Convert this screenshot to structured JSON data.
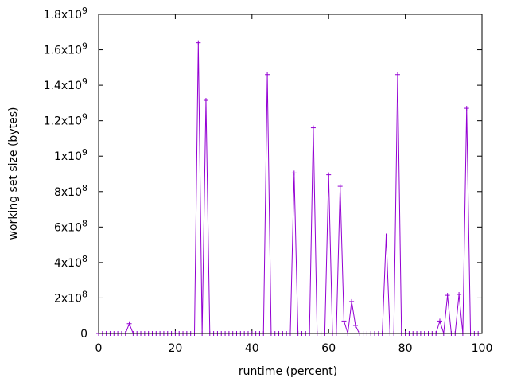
{
  "chart_data": {
    "type": "line",
    "title": "",
    "xlabel": "runtime (percent)",
    "ylabel": "working set size (bytes)",
    "xlim": [
      0,
      100
    ],
    "ylim": [
      0,
      1800000000
    ],
    "grid": false,
    "legend": "none",
    "line_color": "#9400d3",
    "x_ticks": [
      {
        "value": 0,
        "label": "0"
      },
      {
        "value": 20,
        "label": "20"
      },
      {
        "value": 40,
        "label": "40"
      },
      {
        "value": 60,
        "label": "60"
      },
      {
        "value": 80,
        "label": "80"
      },
      {
        "value": 100,
        "label": "100"
      }
    ],
    "y_ticks": [
      {
        "value": 0,
        "mantissa": "0",
        "exp": ""
      },
      {
        "value": 200000000,
        "mantissa": "2x10",
        "exp": "8"
      },
      {
        "value": 400000000,
        "mantissa": "4x10",
        "exp": "8"
      },
      {
        "value": 600000000,
        "mantissa": "6x10",
        "exp": "8"
      },
      {
        "value": 800000000,
        "mantissa": "8x10",
        "exp": "8"
      },
      {
        "value": 1000000000,
        "mantissa": "1x10",
        "exp": "9"
      },
      {
        "value": 1200000000,
        "mantissa": "1.2x10",
        "exp": "9"
      },
      {
        "value": 1400000000,
        "mantissa": "1.4x10",
        "exp": "9"
      },
      {
        "value": 1600000000,
        "mantissa": "1.6x10",
        "exp": "9"
      },
      {
        "value": 1800000000,
        "mantissa": "1.8x10",
        "exp": "9"
      }
    ],
    "series": [
      {
        "x": [
          0,
          1,
          2,
          3,
          4,
          5,
          6,
          7,
          8,
          9,
          10,
          11,
          12,
          13,
          14,
          15,
          16,
          17,
          18,
          19,
          20,
          21,
          22,
          23,
          24,
          25,
          26,
          27,
          28,
          29,
          30,
          31,
          32,
          33,
          34,
          35,
          36,
          37,
          38,
          39,
          40,
          41,
          42,
          43,
          44,
          45,
          46,
          47,
          48,
          49,
          50,
          51,
          52,
          53,
          54,
          55,
          56,
          57,
          58,
          59,
          60,
          61,
          62,
          63,
          64,
          65,
          66,
          67,
          68,
          69,
          70,
          71,
          72,
          73,
          74,
          75,
          76,
          77,
          78,
          79,
          80,
          81,
          82,
          83,
          84,
          85,
          86,
          87,
          88,
          89,
          90,
          91,
          92,
          93,
          94,
          95,
          96,
          97,
          98,
          99
        ],
        "y": [
          0,
          0,
          0,
          0,
          0,
          0,
          0,
          0,
          55000000,
          0,
          0,
          0,
          0,
          0,
          0,
          0,
          0,
          0,
          0,
          0,
          0,
          0,
          0,
          0,
          0,
          0,
          1640000000,
          0,
          1315000000,
          0,
          0,
          0,
          0,
          0,
          0,
          0,
          0,
          0,
          0,
          0,
          0,
          0,
          0,
          0,
          1460000000,
          0,
          0,
          0,
          0,
          0,
          0,
          905000000,
          0,
          0,
          0,
          0,
          1160000000,
          0,
          0,
          0,
          895000000,
          0,
          0,
          830000000,
          70000000,
          0,
          180000000,
          45000000,
          0,
          0,
          0,
          0,
          0,
          0,
          0,
          550000000,
          0,
          0,
          1460000000,
          0,
          0,
          0,
          0,
          0,
          0,
          0,
          0,
          0,
          0,
          70000000,
          0,
          215000000,
          0,
          0,
          220000000,
          0,
          1270000000,
          0,
          0,
          0
        ]
      }
    ]
  }
}
